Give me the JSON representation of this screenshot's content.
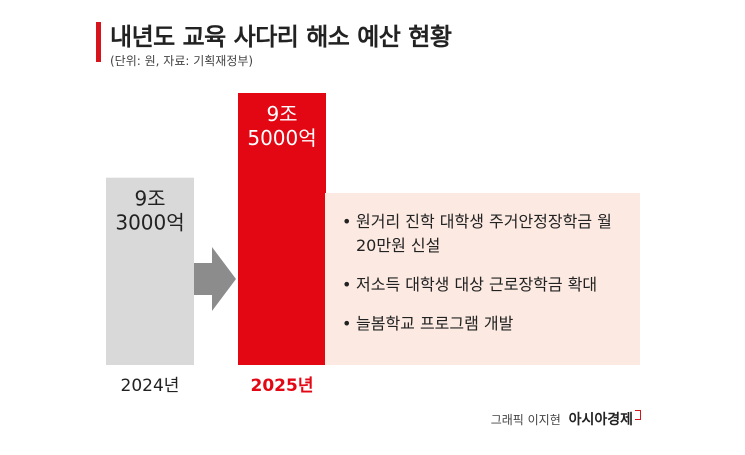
{
  "header": {
    "title": "내년도 교육 사다리 해소 예산 현황",
    "subtitle": "(단위: 원, 자료: 기획재정부)"
  },
  "chart_data": {
    "type": "bar",
    "categories": [
      "2024년",
      "2025년"
    ],
    "values": [
      93000,
      95000
    ],
    "value_labels": [
      [
        "9조",
        "3000억"
      ],
      [
        "9조",
        "5000억"
      ]
    ],
    "colors": [
      "#d9d9d9",
      "#e30613"
    ],
    "label_colors": [
      "#222222",
      "#ffffff"
    ],
    "category_label_colors": [
      "#222222",
      "#e30613"
    ],
    "unit": "억원",
    "title": "내년도 교육 사다리 해소 예산 현황"
  },
  "info": {
    "items": [
      "원거리 진학 대학생 주거안정장학금 월 20만원 신설",
      "저소득 대학생 대상 근로장학금 확대",
      "늘봄학교 프로그램 개발"
    ]
  },
  "credit": {
    "text": "그래픽 이지현",
    "brand": "아시아경제"
  },
  "colors": {
    "accent": "#d7141b",
    "arrow": "#8c8c8c",
    "info_bg": "#fbe9e2"
  }
}
